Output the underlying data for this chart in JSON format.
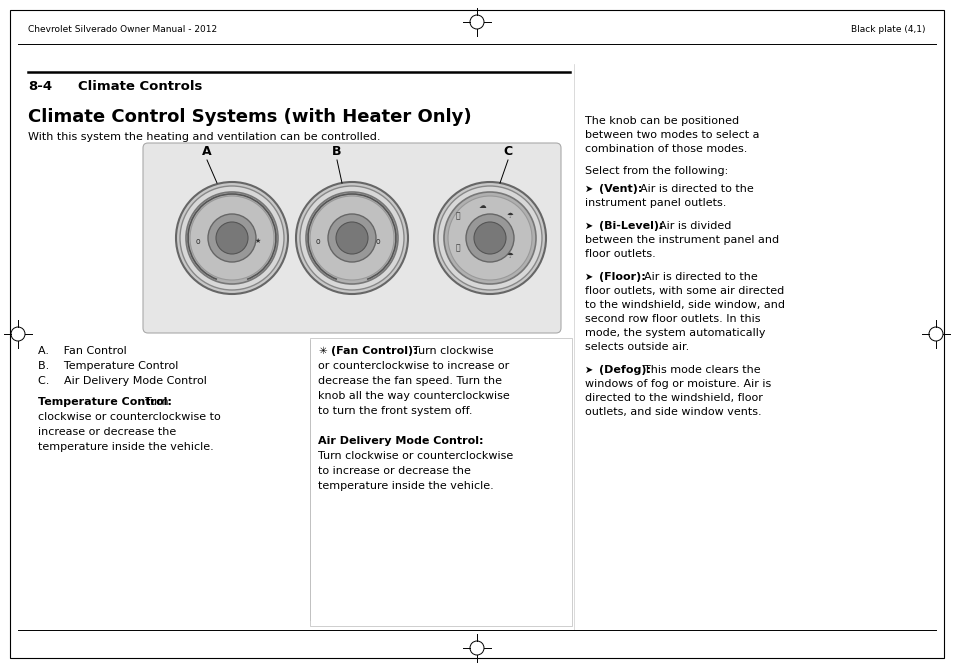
{
  "page_bg": "#ffffff",
  "header_left": "Chevrolet Silverado Owner Manual - 2012",
  "header_right": "Black plate (4,1)",
  "section_label": "8-4",
  "section_title": "Climate Controls",
  "main_title": "Climate Control Systems (with Heater Only)",
  "intro_text": "With this system the heating and ventilation can be controlled.",
  "list_A": "A.  Fan Control",
  "list_B": "B.  Temperature Control",
  "list_C": "C.  Air Delivery Mode Control",
  "temp_ctrl_bold": "Temperature Control:",
  "temp_ctrl_text": "  Turn\nclockwise or counterclockwise to\nincrease or decrease the\ntemperature inside the vehicle.",
  "fan_ctrl_bold": "(Fan Control):",
  "fan_ctrl_text": "  Turn clockwise\nor counterclockwise to increase or\ndecrease the fan speed. Turn the\nknob all the way counterclockwise\nto turn the front system off.",
  "air_ctrl_bold": "Air Delivery Mode Control:",
  "air_ctrl_text": "Turn clockwise or counterclockwise\nto increase or decrease the\ntemperature inside the vehicle.",
  "right_intro": "The knob can be positioned\nbetween two modes to select a\ncombination of those modes.",
  "right_select": "Select from the following:",
  "vent_bold": "(Vent):",
  "vent_text": "  Air is directed to the\ninstrument panel outlets.",
  "bilevel_bold": "(Bi-Level):",
  "bilevel_text": "  Air is divided\nbetween the instrument panel and\nfloor outlets.",
  "floor_bold": "(Floor):",
  "floor_text": "  Air is directed to the\nfloor outlets, with some air directed\nto the windshield, side window, and\nsecond row floor outlets. In this\nmode, the system automatically\nselects outside air.",
  "defog_bold": "(Defog):",
  "defog_text": "  This mode clears the\nwindows of fog or moisture. Air is\ndirected to the windshield, floor\noutlets, and side window vents.",
  "knob_panel_color": "#e6e6e6",
  "knob_panel_border": "#999999"
}
